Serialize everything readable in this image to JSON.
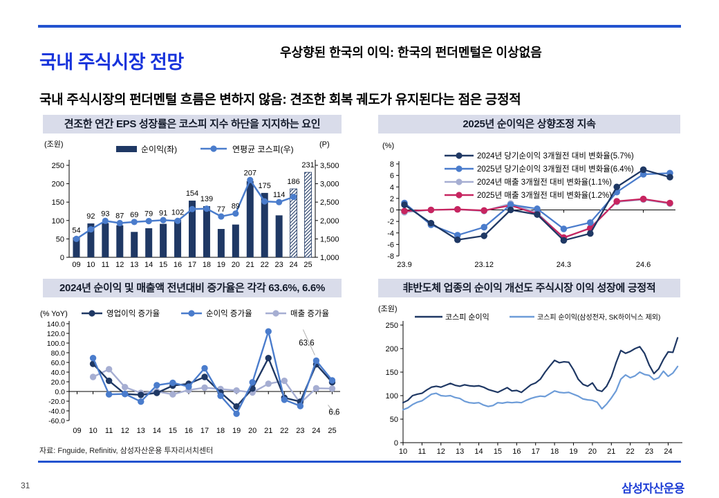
{
  "page": {
    "title": "국내 주식시장 전망",
    "subtitle": "우상향된 한국의 이익: 한국의 펀더멘털은 이상없음",
    "heading": "국내 주식시장의 펀더멘털 흐름은 변하지 않음: 견조한 회복 궤도가 유지된다는 점은 긍정적",
    "source": "자료: Fnguide, Refinitiv, 삼성자산운용 투자리서치센터",
    "page_number": "31",
    "logo": "삼성자산운용"
  },
  "colors": {
    "navy": "#1f3864",
    "blue": "#4a7ccc",
    "light_blue": "#6d9cd8",
    "gray_blue": "#a6aed2",
    "crimson": "#c72560",
    "accent_blue": "#1733db",
    "panel_bg": "#d9dcea",
    "leader_gray": "#b0b0b0"
  },
  "chart_data": [
    {
      "type": "bar+line",
      "title": "견조한 연간 EPS 성장률은 코스피 지수 하단을 지지하는 요인",
      "left_axis_label": "(조원)",
      "right_axis_label": "(P)",
      "categories": [
        "09",
        "10",
        "11",
        "12",
        "13",
        "14",
        "15",
        "16",
        "17",
        "18",
        "19",
        "20",
        "21",
        "22",
        "23",
        "24",
        "25"
      ],
      "left_ylim": [
        0,
        250
      ],
      "left_ticks": [
        0,
        50,
        100,
        150,
        200,
        250
      ],
      "right_ylim": [
        1000,
        3500
      ],
      "right_ticks": [
        "1,000",
        "1,500",
        "2,000",
        "2,500",
        "3,000",
        "3,500"
      ],
      "series": [
        {
          "name": "순이익(좌)",
          "kind": "bar",
          "axis": "left",
          "color": "navy",
          "hatch_from": 15,
          "values": [
            54,
            92,
            93,
            87,
            69,
            79,
            91,
            102,
            154,
            139,
            77,
            89,
            207,
            175,
            114,
            186,
            231
          ]
        },
        {
          "name": "연평균 코스피(우)",
          "kind": "line",
          "axis": "right",
          "color": "blue",
          "values": [
            1500,
            1760,
            1990,
            1930,
            1960,
            1985,
            2010,
            1990,
            2310,
            2320,
            2110,
            2190,
            3100,
            2520,
            2500,
            2640,
            null
          ]
        }
      ]
    },
    {
      "type": "line",
      "title": "2025년 순이익은 상향조정 지속",
      "axis_label": "(%)",
      "ylim": [
        -8,
        8
      ],
      "yticks": [
        8,
        6,
        4,
        2,
        0,
        -2,
        -4,
        -6,
        -8
      ],
      "n_points": 11,
      "x_labels": [
        "23.9",
        "23.12",
        "24.3",
        "24.6"
      ],
      "x_label_indices": [
        0,
        3,
        6,
        9
      ],
      "series": [
        {
          "name": "2024년 당기순이익 3개월전 대비 변화율(5.7%)",
          "color": "navy",
          "values": [
            0.9,
            -2.3,
            -5.2,
            -4.5,
            0.0,
            -0.8,
            -5.3,
            -4.1,
            4.0,
            7.0,
            5.7
          ]
        },
        {
          "name": "2025년 당기순이익 3개월전 대비 변화율(6.4%)",
          "color": "blue",
          "values": [
            1.2,
            -2.6,
            -4.4,
            -3.0,
            0.9,
            0.2,
            -3.3,
            -2.2,
            3.1,
            6.2,
            6.4
          ]
        },
        {
          "name": "2024년 매출 3개월전 대비 변화율(1.1%)",
          "color": "gray_blue",
          "values": [
            -0.4,
            0.0,
            0.1,
            -0.2,
            1.1,
            -0.5,
            -4.9,
            -3.1,
            1.4,
            1.8,
            1.1
          ]
        },
        {
          "name": "2025년 매출 3개월전 대비 변화율(1.2%)",
          "color": "crimson",
          "values": [
            -0.2,
            0.0,
            0.1,
            -0.1,
            0.8,
            -0.7,
            -4.8,
            -3.2,
            1.5,
            1.9,
            1.2
          ]
        }
      ],
      "draw_order": [
        2,
        3,
        1,
        0
      ]
    },
    {
      "type": "line",
      "title": "2024년 순이익 및 매출액 전년대비 증가율은 각각 63.6%, 6.6%",
      "axis_label": "(% YoY)",
      "ylim": [
        -60,
        140
      ],
      "yticks": [
        "140.0",
        "120.0",
        "100.0",
        "80.0",
        "60.0",
        "40.0",
        "20.0",
        "0.0",
        "-20.0",
        "-40.0",
        "-60.0"
      ],
      "categories": [
        "09",
        "10",
        "11",
        "12",
        "13",
        "14",
        "15",
        "16",
        "17",
        "18",
        "19",
        "20",
        "21",
        "22",
        "23",
        "24",
        "25"
      ],
      "series": [
        {
          "name": "영업이익 증가율",
          "color": "navy",
          "values": [
            null,
            57,
            22,
            -5,
            -7,
            -3,
            12,
            16,
            30,
            -2,
            -31,
            6,
            69,
            -13,
            -21,
            56,
            19
          ]
        },
        {
          "name": "순이익 증가율",
          "color": "blue",
          "values": [
            null,
            69,
            -6,
            -5,
            -21,
            13,
            18,
            10,
            48,
            -9,
            -46,
            19,
            124,
            -17,
            -30,
            63.6,
            23
          ]
        },
        {
          "name": "매출 증가율",
          "color": "gray_blue",
          "values": [
            null,
            30,
            46,
            9,
            -3,
            0,
            -6,
            3,
            8,
            5,
            2,
            -2,
            16,
            22,
            -24,
            6.6,
            6
          ]
        }
      ],
      "draw_order": [
        2,
        0,
        1
      ],
      "annotations": [
        {
          "text": "63.6",
          "xi": 15,
          "value": 63.6,
          "lab": [
            -14,
            -26
          ],
          "l1": [
            -5,
            -19
          ],
          "l2": [
            -2,
            -8
          ]
        },
        {
          "text": "6.6",
          "xi": 15,
          "value": 6.6,
          "lab": [
            26,
            34
          ],
          "l1": [
            3,
            5
          ],
          "l2": [
            17,
            24
          ]
        }
      ]
    },
    {
      "type": "line",
      "title": "非반도체 업종의 순이익 개선도 주식시장 이익 성장에 긍정적",
      "axis_label": "(조원)",
      "ylim": [
        0,
        250
      ],
      "yticks": [
        250,
        200,
        150,
        100,
        50,
        0
      ],
      "xlim": [
        10,
        24.75
      ],
      "x_ticks": [
        "10",
        "11",
        "12",
        "13",
        "14",
        "15",
        "16",
        "17",
        "18",
        "19",
        "20",
        "21",
        "22",
        "23",
        "24"
      ],
      "x_start": 10,
      "x_step": 0.25,
      "series": [
        {
          "name": "코스피 순이익",
          "color": "navy",
          "values": [
            85,
            90,
            100,
            103,
            105,
            112,
            118,
            120,
            118,
            122,
            126,
            122,
            120,
            123,
            121,
            120,
            121,
            118,
            113,
            110,
            107,
            112,
            117,
            110,
            111,
            107,
            115,
            123,
            127,
            135,
            150,
            163,
            175,
            170,
            172,
            171,
            155,
            135,
            124,
            120,
            127,
            112,
            109,
            120,
            140,
            170,
            196,
            190,
            194,
            200,
            204,
            190,
            165,
            147,
            157,
            177,
            193,
            192,
            223
          ]
        },
        {
          "name": "코스피 순이익(삼성전자, SK하이닉스 제외)",
          "color": "light_blue",
          "values": [
            70,
            74,
            81,
            86,
            89,
            96,
            103,
            105,
            100,
            99,
            100,
            96,
            94,
            88,
            85,
            84,
            85,
            80,
            77,
            79,
            85,
            84,
            86,
            85,
            86,
            85,
            90,
            94,
            97,
            99,
            98,
            104,
            110,
            107,
            106,
            107,
            103,
            99,
            93,
            91,
            90,
            86,
            72,
            82,
            95,
            110,
            135,
            144,
            138,
            142,
            150,
            145,
            143,
            134,
            138,
            152,
            141,
            148,
            162
          ]
        }
      ]
    }
  ]
}
